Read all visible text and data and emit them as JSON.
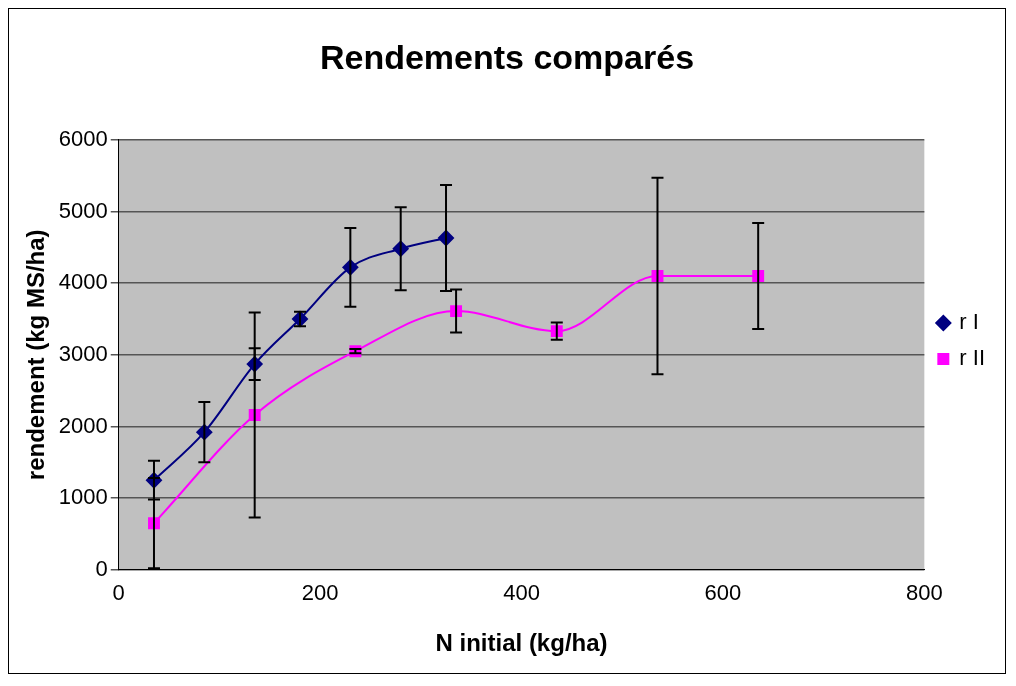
{
  "chart_data": {
    "type": "line",
    "title": "Rendements comparés",
    "xlabel": "N initial (kg/ha)",
    "ylabel": "rendement (kg MS/ha)",
    "xlim": [
      0,
      800
    ],
    "xticks": [
      0,
      200,
      400,
      600,
      800
    ],
    "ylim": [
      0,
      6000
    ],
    "yticks": [
      0,
      1000,
      2000,
      3000,
      4000,
      5000,
      6000
    ],
    "grid": "y",
    "legend": "right",
    "line_style": "solid",
    "series": [
      {
        "name": "r I",
        "color": "#000080",
        "marker": "diamond",
        "x": [
          35,
          85,
          135,
          180,
          230,
          280,
          325
        ],
        "values": [
          1250,
          1920,
          2870,
          3500,
          4220,
          4480,
          4630
        ],
        "errors": [
          270,
          420,
          220,
          100,
          550,
          580,
          740
        ]
      },
      {
        "name": "r II",
        "color": "#ff00ff",
        "marker": "square",
        "x": [
          35,
          135,
          235,
          335,
          435,
          535,
          635
        ],
        "values": [
          650,
          2160,
          3050,
          3610,
          3330,
          4100,
          4100
        ],
        "errors": [
          630,
          1430,
          30,
          300,
          120,
          1370,
          740
        ]
      }
    ]
  }
}
